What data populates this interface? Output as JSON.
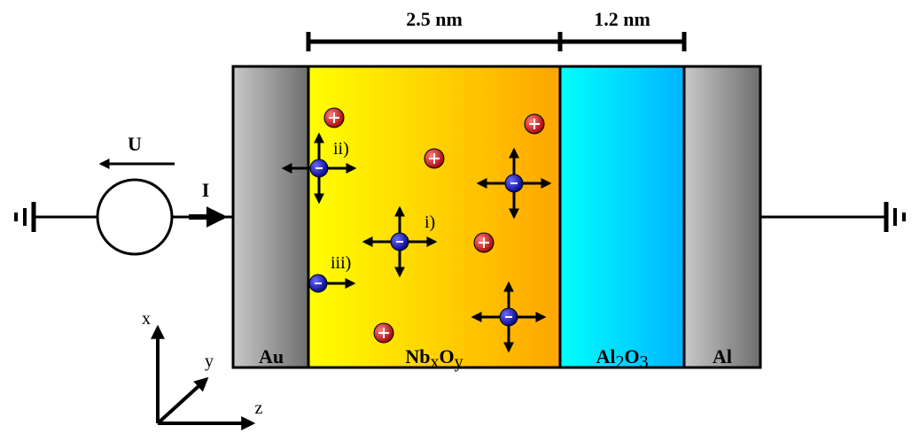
{
  "dimensions": [
    "2.5 nm",
    "1.2 nm"
  ],
  "source": {
    "voltage": "U",
    "current": "I"
  },
  "layers": [
    {
      "label": [
        "Au"
      ]
    },
    {
      "label": [
        "Nb",
        "x",
        "O",
        "y"
      ]
    },
    {
      "label": [
        "Al",
        "2",
        "O",
        "3"
      ]
    },
    {
      "label": [
        "Al"
      ]
    }
  ],
  "processes": [
    "i)",
    "ii)",
    "iii)"
  ],
  "axes": [
    "x",
    "y",
    "z"
  ]
}
